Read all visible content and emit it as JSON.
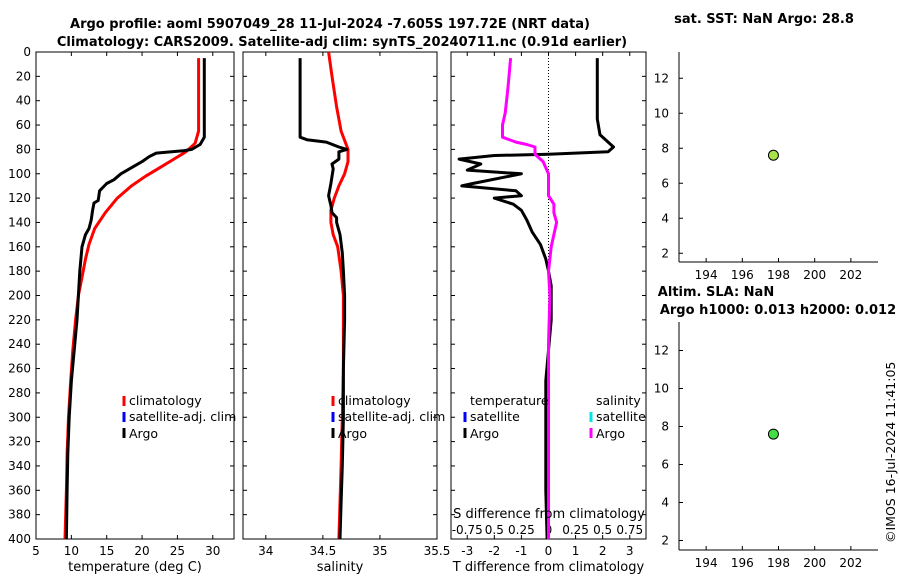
{
  "title_line1": "Argo profile: aoml 5907049_28 11-Jul-2024 -7.605S 197.72E (NRT data)",
  "title_line2": "Climatology: CARS2009. Satellite-adj clim: synTS_20240711.nc (0.91d earlier)",
  "side_title_top": "sat. SST: NaN Argo: 28.8",
  "side_title_bottom_1": "Altim. SLA: NaN",
  "side_title_bottom_2": "Argo h1000: 0.013 h2000: 0.012",
  "watermark": "©IMOS 16-Jul-2024 11:41:05",
  "colors": {
    "climatology": "#ff0000",
    "satellite": "#0000ff",
    "argo": "#000000",
    "sat_salinity": "#00e5e5",
    "argo_salinity": "#ff00ff",
    "marker_top": "#a8e24a",
    "marker_bottom": "#44dd44"
  },
  "chart_data": [
    {
      "type": "line",
      "name": "temperature",
      "xlabel": "temperature (deg C)",
      "xlim": [
        5,
        33
      ],
      "xticks": [
        5,
        10,
        15,
        20,
        25,
        30
      ],
      "ylim": [
        400,
        0
      ],
      "yticks": [
        0,
        20,
        40,
        60,
        80,
        100,
        120,
        140,
        160,
        180,
        200,
        220,
        240,
        260,
        280,
        300,
        320,
        340,
        360,
        380,
        400
      ],
      "legend": [
        "climatology",
        "satellite-adj. clim",
        "Argo"
      ],
      "series": [
        {
          "name": "climatology",
          "color": "#ff0000",
          "points": [
            [
              28.0,
              5
            ],
            [
              28.0,
              40
            ],
            [
              28.0,
              65
            ],
            [
              27.5,
              75
            ],
            [
              26.2,
              82
            ],
            [
              24.5,
              88
            ],
            [
              22.5,
              95
            ],
            [
              20.5,
              102
            ],
            [
              18.5,
              110
            ],
            [
              16.5,
              120
            ],
            [
              14.8,
              132
            ],
            [
              13.3,
              145
            ],
            [
              12.5,
              158
            ],
            [
              12.0,
              170
            ],
            [
              11.5,
              185
            ],
            [
              11.0,
              200
            ],
            [
              10.6,
              220
            ],
            [
              10.2,
              245
            ],
            [
              9.9,
              270
            ],
            [
              9.6,
              300
            ],
            [
              9.4,
              330
            ],
            [
              9.3,
              360
            ],
            [
              9.1,
              400
            ]
          ]
        },
        {
          "name": "Argo",
          "color": "#000000",
          "points": [
            [
              28.8,
              5
            ],
            [
              28.8,
              70
            ],
            [
              28.2,
              76
            ],
            [
              27.0,
              80
            ],
            [
              26.0,
              81
            ],
            [
              22.0,
              83
            ],
            [
              21.0,
              86
            ],
            [
              20.0,
              90
            ],
            [
              18.5,
              95
            ],
            [
              17.0,
              100
            ],
            [
              16.0,
              105
            ],
            [
              15.0,
              108
            ],
            [
              14.0,
              114
            ],
            [
              13.8,
              122
            ],
            [
              13.2,
              124
            ],
            [
              13.0,
              130
            ],
            [
              12.8,
              138
            ],
            [
              12.5,
              145
            ],
            [
              12.0,
              150
            ],
            [
              11.5,
              160
            ],
            [
              11.2,
              180
            ],
            [
              11.0,
              200
            ],
            [
              10.8,
              220
            ],
            [
              10.4,
              245
            ],
            [
              10.0,
              270
            ],
            [
              9.7,
              300
            ],
            [
              9.5,
              330
            ],
            [
              9.4,
              360
            ],
            [
              9.3,
              400
            ]
          ]
        }
      ]
    },
    {
      "type": "line",
      "name": "salinity",
      "xlabel": "salinity",
      "xlim": [
        33.8,
        35.5
      ],
      "xticks": [
        34,
        34.5,
        35,
        35.5
      ],
      "ylim": [
        400,
        0
      ],
      "legend": [
        "climatology",
        "satellite-adj. clim",
        "Argo"
      ],
      "series": [
        {
          "name": "climatology",
          "color": "#ff0000",
          "points": [
            [
              34.55,
              0
            ],
            [
              34.58,
              20
            ],
            [
              34.62,
              45
            ],
            [
              34.66,
              65
            ],
            [
              34.72,
              80
            ],
            [
              34.72,
              90
            ],
            [
              34.69,
              100
            ],
            [
              34.64,
              110
            ],
            [
              34.6,
              120
            ],
            [
              34.57,
              130
            ],
            [
              34.57,
              140
            ],
            [
              34.59,
              150
            ],
            [
              34.63,
              160
            ],
            [
              34.66,
              180
            ],
            [
              34.68,
              200
            ],
            [
              34.68,
              220
            ],
            [
              34.68,
              260
            ],
            [
              34.67,
              300
            ],
            [
              34.66,
              340
            ],
            [
              34.65,
              370
            ],
            [
              34.64,
              400
            ]
          ]
        },
        {
          "name": "Argo",
          "color": "#000000",
          "points": [
            [
              34.3,
              5
            ],
            [
              34.3,
              70
            ],
            [
              34.36,
              72
            ],
            [
              34.53,
              74
            ],
            [
              34.64,
              78
            ],
            [
              34.71,
              80
            ],
            [
              34.64,
              82
            ],
            [
              34.64,
              88
            ],
            [
              34.58,
              92
            ],
            [
              34.59,
              96
            ],
            [
              34.57,
              108
            ],
            [
              34.55,
              118
            ],
            [
              34.56,
              122
            ],
            [
              34.57,
              126
            ],
            [
              34.58,
              132
            ],
            [
              34.62,
              136
            ],
            [
              34.62,
              140
            ],
            [
              34.65,
              150
            ],
            [
              34.67,
              165
            ],
            [
              34.68,
              180
            ],
            [
              34.69,
              200
            ],
            [
              34.69,
              220
            ],
            [
              34.68,
              260
            ],
            [
              34.68,
              300
            ],
            [
              34.67,
              340
            ],
            [
              34.66,
              370
            ],
            [
              34.65,
              400
            ]
          ]
        }
      ]
    },
    {
      "type": "line",
      "name": "difference",
      "xlabel": "T difference from climatology",
      "xlabel_top": "S difference from climatology",
      "xticks": [
        -3,
        -2,
        -1,
        0,
        1,
        2,
        3
      ],
      "xticks_top_labels": [
        "-0.75",
        "0.5",
        "0.25",
        "0",
        "0.25",
        "0.5",
        "0.75"
      ],
      "xlim": [
        -3.6,
        3.6
      ],
      "ylim": [
        400,
        0
      ],
      "legend": {
        "temperature": [
          "satellite",
          "Argo"
        ],
        "salinity": [
          "satellite",
          "Argo"
        ]
      },
      "series": [
        {
          "name": "T Argo",
          "color": "#000000",
          "points": [
            [
              1.8,
              5
            ],
            [
              1.8,
              55
            ],
            [
              1.9,
              68
            ],
            [
              2.4,
              78
            ],
            [
              2.2,
              82
            ],
            [
              0.0,
              84
            ],
            [
              -2.0,
              85
            ],
            [
              -3.3,
              88
            ],
            [
              -2.5,
              92
            ],
            [
              -3.0,
              97
            ],
            [
              -1.0,
              100
            ],
            [
              -2.8,
              108
            ],
            [
              -3.2,
              110
            ],
            [
              -1.2,
              114
            ],
            [
              -1.0,
              118
            ],
            [
              -2.0,
              120
            ],
            [
              -1.3,
              125
            ],
            [
              -1.0,
              130
            ],
            [
              -0.8,
              138
            ],
            [
              -0.6,
              148
            ],
            [
              -0.3,
              158
            ],
            [
              -0.1,
              170
            ],
            [
              0.0,
              180
            ],
            [
              0.1,
              192
            ],
            [
              0.1,
              200
            ],
            [
              0.1,
              220
            ],
            [
              0.0,
              245
            ],
            [
              -0.1,
              270
            ],
            [
              -0.1,
              300
            ],
            [
              -0.1,
              330
            ],
            [
              -0.1,
              360
            ],
            [
              -0.05,
              400
            ]
          ]
        },
        {
          "name": "S Argo",
          "color": "#ff00ff",
          "points": [
            [
              -1.4,
              5
            ],
            [
              -1.5,
              30
            ],
            [
              -1.6,
              50
            ],
            [
              -1.7,
              60
            ],
            [
              -1.7,
              70
            ],
            [
              -1.2,
              74
            ],
            [
              -0.8,
              76
            ],
            [
              -0.5,
              78
            ],
            [
              -0.5,
              84
            ],
            [
              -0.2,
              90
            ],
            [
              0.0,
              100
            ],
            [
              0.0,
              118
            ],
            [
              0.2,
              125
            ],
            [
              0.2,
              132
            ],
            [
              0.3,
              140
            ],
            [
              0.2,
              150
            ],
            [
              0.1,
              160
            ],
            [
              0.0,
              180
            ],
            [
              0.05,
              200
            ],
            [
              0.0,
              240
            ],
            [
              0.0,
              280
            ],
            [
              0.0,
              320
            ],
            [
              0.0,
              360
            ],
            [
              0.0,
              400
            ]
          ]
        }
      ]
    },
    {
      "type": "scatter",
      "name": "sst-map",
      "xlim": [
        192.5,
        203.5
      ],
      "xticks": [
        194,
        196,
        198,
        200,
        202
      ],
      "ylim": [
        1.5,
        13.5
      ],
      "yticks": [
        2,
        4,
        6,
        8,
        10,
        12
      ],
      "points": [
        [
          197.72,
          7.6
        ]
      ]
    },
    {
      "type": "scatter",
      "name": "sla-map",
      "xlim": [
        192.5,
        203.5
      ],
      "xticks": [
        194,
        196,
        198,
        200,
        202
      ],
      "ylim": [
        1.5,
        13.5
      ],
      "yticks": [
        2,
        4,
        6,
        8,
        10,
        12
      ],
      "points": [
        [
          197.72,
          7.6
        ]
      ]
    }
  ]
}
